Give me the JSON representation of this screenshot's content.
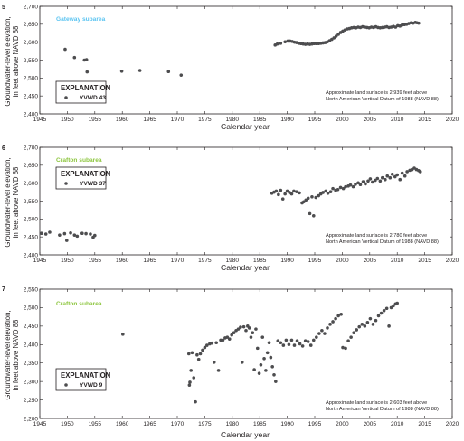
{
  "colors": {
    "dot": "#4d4d4f",
    "axis": "#231f20",
    "gateway": "#5bc4f1",
    "crafton": "#8dc63f"
  },
  "x_axis": {
    "title": "Calendar year",
    "ticks": [
      "1945",
      "1950",
      "1955",
      "1960",
      "1965",
      "1970",
      "1975",
      "1980",
      "1985",
      "1990",
      "1995",
      "2000",
      "2005",
      "2010",
      "2015",
      "2020"
    ]
  },
  "chart_data": [
    {
      "type": "scatter",
      "panel_number": "5",
      "subarea_label": "Gateway subarea",
      "subarea_color": "#5bc4f1",
      "ylabel_line1": "Groundwater-level elevation,",
      "ylabel_line2": "in feet above NAVD 88",
      "xlabel": "Calendar year",
      "xlim": [
        1945,
        2020
      ],
      "ylim": [
        2400,
        2700
      ],
      "y_ticks": [
        "2,400",
        "2,450",
        "2,500",
        "2,550",
        "2,600",
        "2,650",
        "2,700"
      ],
      "legend": {
        "title": "EXPLANATION",
        "label": "YVWD 43"
      },
      "note_line1": "Approximate land surface is 2,939 feet above",
      "note_line2": "North American Vertical Datum of 1988 (NAVD 88)",
      "points": [
        [
          1949.6,
          2580
        ],
        [
          1951.3,
          2557
        ],
        [
          1953.1,
          2550
        ],
        [
          1953.5,
          2551
        ],
        [
          1953.6,
          2517
        ],
        [
          1959.9,
          2519
        ],
        [
          1963.2,
          2521
        ],
        [
          1968.4,
          2518
        ],
        [
          1970.7,
          2508
        ],
        [
          1987.8,
          2592
        ],
        [
          1988.2,
          2595
        ],
        [
          1988.8,
          2597
        ],
        [
          1989.6,
          2601
        ],
        [
          1990.1,
          2603
        ],
        [
          1990.5,
          2603
        ],
        [
          1990.9,
          2602
        ],
        [
          1991.3,
          2600
        ],
        [
          1991.7,
          2599
        ],
        [
          1992.1,
          2597
        ],
        [
          1992.5,
          2596
        ],
        [
          1992.9,
          2595
        ],
        [
          1993.3,
          2594
        ],
        [
          1993.7,
          2595
        ],
        [
          1994.1,
          2594
        ],
        [
          1994.5,
          2595
        ],
        [
          1994.9,
          2596
        ],
        [
          1995.3,
          2596
        ],
        [
          1995.7,
          2596
        ],
        [
          1996.1,
          2597
        ],
        [
          1996.5,
          2598
        ],
        [
          1996.9,
          2599
        ],
        [
          1997.3,
          2601
        ],
        [
          1997.7,
          2604
        ],
        [
          1998.1,
          2608
        ],
        [
          1998.5,
          2612
        ],
        [
          1998.9,
          2617
        ],
        [
          1999.3,
          2622
        ],
        [
          1999.7,
          2627
        ],
        [
          2000.1,
          2631
        ],
        [
          2000.5,
          2634
        ],
        [
          2000.9,
          2637
        ],
        [
          2001.3,
          2638
        ],
        [
          2001.7,
          2640
        ],
        [
          2002.1,
          2641
        ],
        [
          2002.5,
          2640
        ],
        [
          2002.9,
          2642
        ],
        [
          2003.3,
          2641
        ],
        [
          2003.7,
          2643
        ],
        [
          2004.1,
          2642
        ],
        [
          2004.5,
          2641
        ],
        [
          2004.9,
          2640
        ],
        [
          2005.3,
          2642
        ],
        [
          2005.7,
          2641
        ],
        [
          2006.1,
          2643
        ],
        [
          2006.5,
          2641
        ],
        [
          2006.9,
          2640
        ],
        [
          2007.3,
          2641
        ],
        [
          2007.7,
          2642
        ],
        [
          2008.1,
          2643
        ],
        [
          2008.5,
          2641
        ],
        [
          2008.9,
          2642
        ],
        [
          2009.3,
          2644
        ],
        [
          2009.7,
          2642
        ],
        [
          2010.1,
          2646
        ],
        [
          2010.5,
          2645
        ],
        [
          2010.9,
          2648
        ],
        [
          2011.3,
          2649
        ],
        [
          2011.7,
          2650
        ],
        [
          2012.1,
          2652
        ],
        [
          2012.5,
          2654
        ],
        [
          2012.9,
          2653
        ],
        [
          2013.3,
          2655
        ],
        [
          2013.6,
          2654
        ],
        [
          2013.9,
          2653
        ]
      ]
    },
    {
      "type": "scatter",
      "panel_number": "6",
      "subarea_label": "Crafton subarea",
      "subarea_color": "#8dc63f",
      "ylabel_line1": "Groundwater-level elevation,",
      "ylabel_line2": "in feet above NAVD 88",
      "xlabel": "Calendar year",
      "xlim": [
        1945,
        2020
      ],
      "ylim": [
        2400,
        2700
      ],
      "y_ticks": [
        "2,400",
        "2,450",
        "2,500",
        "2,550",
        "2,600",
        "2,650",
        "2,700"
      ],
      "legend": {
        "title": "EXPLANATION",
        "label": "YVWD 37"
      },
      "note_line1": "Approximate land surface is 2,780 feet above",
      "note_line2": "North American Vertical Datum of 1988 (NAVD 88)",
      "points": [
        [
          1945.3,
          2460
        ],
        [
          1946.1,
          2458
        ],
        [
          1946.8,
          2463
        ],
        [
          1948.6,
          2455
        ],
        [
          1949.5,
          2459
        ],
        [
          1949.9,
          2440
        ],
        [
          1950.6,
          2461
        ],
        [
          1951.3,
          2455
        ],
        [
          1951.8,
          2452
        ],
        [
          1952.7,
          2460
        ],
        [
          1953.4,
          2459
        ],
        [
          1954.2,
          2458
        ],
        [
          1954.7,
          2449
        ],
        [
          1955.0,
          2454
        ],
        [
          1987.2,
          2572
        ],
        [
          1987.6,
          2575
        ],
        [
          1988.0,
          2578
        ],
        [
          1988.4,
          2568
        ],
        [
          1988.8,
          2580
        ],
        [
          1989.2,
          2556
        ],
        [
          1989.6,
          2570
        ],
        [
          1990.0,
          2578
        ],
        [
          1990.4,
          2574
        ],
        [
          1990.8,
          2570
        ],
        [
          1991.2,
          2578
        ],
        [
          1991.7,
          2576
        ],
        [
          1992.2,
          2573
        ],
        [
          1992.7,
          2545
        ],
        [
          1993.0,
          2548
        ],
        [
          1993.4,
          2553
        ],
        [
          1993.8,
          2558
        ],
        [
          1994.1,
          2515
        ],
        [
          1994.5,
          2562
        ],
        [
          1994.8,
          2509
        ],
        [
          1995.2,
          2560
        ],
        [
          1995.7,
          2565
        ],
        [
          1996.1,
          2570
        ],
        [
          1996.5,
          2574
        ],
        [
          1997.0,
          2578
        ],
        [
          1997.4,
          2572
        ],
        [
          1997.9,
          2576
        ],
        [
          1998.3,
          2585
        ],
        [
          1998.8,
          2580
        ],
        [
          1999.2,
          2582
        ],
        [
          1999.7,
          2588
        ],
        [
          2000.2,
          2585
        ],
        [
          2000.6,
          2590
        ],
        [
          2001.1,
          2592
        ],
        [
          2001.5,
          2595
        ],
        [
          2002.0,
          2590
        ],
        [
          2002.4,
          2597
        ],
        [
          2002.9,
          2601
        ],
        [
          2003.3,
          2596
        ],
        [
          2003.8,
          2604
        ],
        [
          2004.2,
          2598
        ],
        [
          2004.7,
          2606
        ],
        [
          2005.1,
          2612
        ],
        [
          2005.5,
          2603
        ],
        [
          2006.0,
          2608
        ],
        [
          2006.4,
          2613
        ],
        [
          2006.9,
          2606
        ],
        [
          2007.3,
          2615
        ],
        [
          2007.8,
          2610
        ],
        [
          2008.2,
          2620
        ],
        [
          2008.7,
          2615
        ],
        [
          2009.1,
          2625
        ],
        [
          2009.6,
          2618
        ],
        [
          2010.0,
          2623
        ],
        [
          2010.5,
          2610
        ],
        [
          2010.9,
          2628
        ],
        [
          2011.4,
          2620
        ],
        [
          2011.8,
          2632
        ],
        [
          2012.3,
          2636
        ],
        [
          2012.7,
          2638
        ],
        [
          2013.1,
          2642
        ],
        [
          2013.5,
          2638
        ],
        [
          2013.9,
          2635
        ],
        [
          2014.2,
          2632
        ]
      ]
    },
    {
      "type": "scatter",
      "panel_number": "7",
      "subarea_label": "Crafton subarea",
      "subarea_color": "#8dc63f",
      "ylabel_line1": "Groundwater-level elevation,",
      "ylabel_line2": "in feet above NAVD 88",
      "xlabel": "Calendar year",
      "xlim": [
        1945,
        2020
      ],
      "ylim": [
        2200,
        2550
      ],
      "y_ticks": [
        "2,200",
        "2,250",
        "2,300",
        "2,350",
        "2,400",
        "2,450",
        "2,500",
        "2,550"
      ],
      "legend": {
        "title": "EXPLANATION",
        "label": "YVWD 9"
      },
      "note_line1": "Approximate land surface is 2,603 feet above",
      "note_line2": "North American Vertical Datum of 1988 (NAVD 88)",
      "points": [
        [
          1960.1,
          2428
        ],
        [
          1972.1,
          2375
        ],
        [
          1972.2,
          2290
        ],
        [
          1972.3,
          2298
        ],
        [
          1972.5,
          2330
        ],
        [
          1972.7,
          2378
        ],
        [
          1973.0,
          2310
        ],
        [
          1973.3,
          2245
        ],
        [
          1973.6,
          2372
        ],
        [
          1973.9,
          2360
        ],
        [
          1974.2,
          2375
        ],
        [
          1974.6,
          2385
        ],
        [
          1975.0,
          2392
        ],
        [
          1975.4,
          2398
        ],
        [
          1975.9,
          2402
        ],
        [
          1976.3,
          2404
        ],
        [
          1976.7,
          2352
        ],
        [
          1977.1,
          2405
        ],
        [
          1977.5,
          2330
        ],
        [
          1977.9,
          2412
        ],
        [
          1978.3,
          2412
        ],
        [
          1978.7,
          2418
        ],
        [
          1979.1,
          2420
        ],
        [
          1979.5,
          2415
        ],
        [
          1979.9,
          2426
        ],
        [
          1980.3,
          2432
        ],
        [
          1980.7,
          2438
        ],
        [
          1981.1,
          2442
        ],
        [
          1981.5,
          2447
        ],
        [
          1981.8,
          2352
        ],
        [
          1982.1,
          2448
        ],
        [
          1982.5,
          2438
        ],
        [
          1982.8,
          2450
        ],
        [
          1983.1,
          2445
        ],
        [
          1983.4,
          2420
        ],
        [
          1983.7,
          2432
        ],
        [
          1984.0,
          2332
        ],
        [
          1984.3,
          2442
        ],
        [
          1984.6,
          2390
        ],
        [
          1984.9,
          2322
        ],
        [
          1985.2,
          2345
        ],
        [
          1985.5,
          2420
        ],
        [
          1985.8,
          2362
        ],
        [
          1986.1,
          2330
        ],
        [
          1986.4,
          2378
        ],
        [
          1986.7,
          2405
        ],
        [
          1987.0,
          2365
        ],
        [
          1987.3,
          2340
        ],
        [
          1987.6,
          2318
        ],
        [
          1987.9,
          2300
        ],
        [
          1988.3,
          2410
        ],
        [
          1988.8,
          2405
        ],
        [
          1989.3,
          2398
        ],
        [
          1989.8,
          2412
        ],
        [
          1990.3,
          2400
        ],
        [
          1990.8,
          2412
        ],
        [
          1991.3,
          2398
        ],
        [
          1991.8,
          2410
        ],
        [
          1992.3,
          2402
        ],
        [
          1992.8,
          2396
        ],
        [
          1993.3,
          2410
        ],
        [
          1993.8,
          2408
        ],
        [
          1994.3,
          2398
        ],
        [
          1994.8,
          2412
        ],
        [
          1995.3,
          2420
        ],
        [
          1995.8,
          2430
        ],
        [
          1996.3,
          2438
        ],
        [
          1996.8,
          2430
        ],
        [
          1997.3,
          2445
        ],
        [
          1997.8,
          2455
        ],
        [
          1998.3,
          2462
        ],
        [
          1998.8,
          2470
        ],
        [
          1999.3,
          2478
        ],
        [
          1999.8,
          2482
        ],
        [
          2000.1,
          2392
        ],
        [
          2000.6,
          2390
        ],
        [
          2001.1,
          2410
        ],
        [
          2001.6,
          2420
        ],
        [
          2002.1,
          2432
        ],
        [
          2002.6,
          2440
        ],
        [
          2003.1,
          2448
        ],
        [
          2003.6,
          2455
        ],
        [
          2004.1,
          2450
        ],
        [
          2004.6,
          2460
        ],
        [
          2005.1,
          2470
        ],
        [
          2005.6,
          2455
        ],
        [
          2006.1,
          2465
        ],
        [
          2006.6,
          2478
        ],
        [
          2007.1,
          2485
        ],
        [
          2007.6,
          2492
        ],
        [
          2008.1,
          2498
        ],
        [
          2008.5,
          2450
        ],
        [
          2008.9,
          2500
        ],
        [
          2009.3,
          2505
        ],
        [
          2009.7,
          2510
        ],
        [
          2010.0,
          2512
        ]
      ]
    }
  ]
}
